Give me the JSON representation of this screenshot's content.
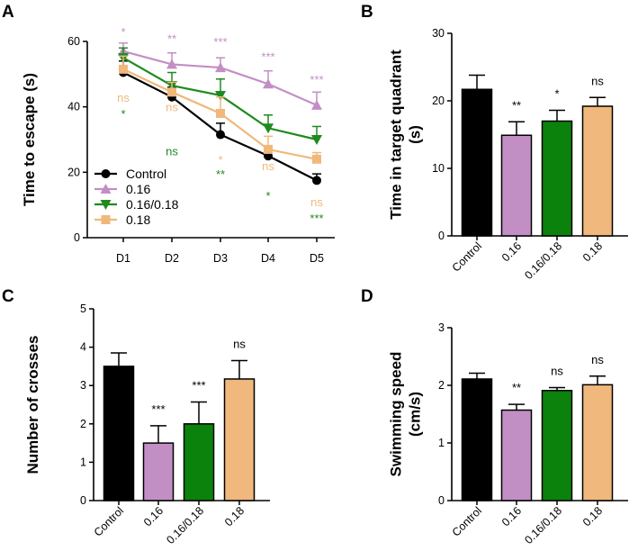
{
  "panels": [
    "A",
    "B",
    "C",
    "D"
  ],
  "chart_data": [
    {
      "id": "A",
      "type": "line",
      "xlabel": "",
      "ylabel": "Time to escape (s)",
      "categories": [
        "D1",
        "D2",
        "D3",
        "D4",
        "D5"
      ],
      "ylim": [
        0,
        60
      ],
      "yticks": [
        "0",
        "20",
        "40",
        "60"
      ],
      "series": [
        {
          "name": "Control",
          "color": "#000000",
          "marker": "circle",
          "values": [
            50.5,
            43,
            31.5,
            25,
            17.5
          ],
          "errors": [
            3.5,
            3,
            3.5,
            3,
            2
          ]
        },
        {
          "name": "0.16",
          "color": "#c28fc4",
          "marker": "triangle-up",
          "values": [
            57,
            53,
            52,
            47,
            40.5
          ],
          "errors": [
            2.5,
            3.5,
            3,
            4,
            4
          ]
        },
        {
          "name": "0.16/0.18",
          "color": "#1f8a1f",
          "marker": "triangle-down",
          "values": [
            55,
            46.5,
            43.5,
            33.5,
            30
          ],
          "errors": [
            3,
            4,
            5,
            4,
            4
          ]
        },
        {
          "name": "0.18",
          "color": "#f0b87c",
          "marker": "square",
          "values": [
            51.5,
            44.5,
            38,
            27,
            24
          ],
          "errors": [
            4,
            3,
            5,
            4,
            2
          ]
        }
      ],
      "annotations": [
        {
          "text": "*",
          "color": "#c28fc4",
          "category": "D1",
          "y": 63
        },
        {
          "text": "ns",
          "color": "#f0b87c",
          "category": "D1",
          "y": 43
        },
        {
          "text": "*",
          "color": "#1f8a1f",
          "category": "D1",
          "y": 38
        },
        {
          "text": "**",
          "color": "#c28fc4",
          "category": "D2",
          "y": 61
        },
        {
          "text": "ns",
          "color": "#f0b87c",
          "category": "D2",
          "y": 40
        },
        {
          "text": "ns",
          "color": "#1f8a1f",
          "category": "D2",
          "y": 26.5
        },
        {
          "text": "***",
          "color": "#c28fc4",
          "category": "D3",
          "y": 60
        },
        {
          "text": "*",
          "color": "#f0b87c",
          "category": "D3",
          "y": 24
        },
        {
          "text": "**",
          "color": "#1f8a1f",
          "category": "D3",
          "y": 19.5
        },
        {
          "text": "***",
          "color": "#c28fc4",
          "category": "D4",
          "y": 55.5
        },
        {
          "text": "ns",
          "color": "#f0b87c",
          "category": "D4",
          "y": 22
        },
        {
          "text": "*",
          "color": "#1f8a1f",
          "category": "D4",
          "y": 13
        },
        {
          "text": "***",
          "color": "#c28fc4",
          "category": "D5",
          "y": 48.5
        },
        {
          "text": "ns",
          "color": "#f0b87c",
          "category": "D5",
          "y": 11
        },
        {
          "text": "***",
          "color": "#1f8a1f",
          "category": "D5",
          "y": 6
        }
      ]
    },
    {
      "id": "B",
      "type": "bar",
      "ylabel_lines": [
        "Time in target quadrant",
        "(s)"
      ],
      "categories": [
        "Control",
        "0.16",
        "0.16/0.18",
        "0.18"
      ],
      "colors": [
        "#000000",
        "#c28fc4",
        "#0b820b",
        "#f0b87c"
      ],
      "values": [
        21.7,
        14.9,
        17,
        19.2
      ],
      "errors": [
        2.1,
        2,
        1.6,
        1.3
      ],
      "sig": [
        "",
        "**",
        "*",
        "ns"
      ],
      "ylim": [
        0,
        30
      ],
      "yticks": [
        "0",
        "10",
        "20",
        "30"
      ]
    },
    {
      "id": "C",
      "type": "bar",
      "ylabel_lines": [
        "Number of crosses"
      ],
      "categories": [
        "Control",
        "0.16",
        "0.16/0.18",
        "0.18"
      ],
      "colors": [
        "#000000",
        "#c28fc4",
        "#0b820b",
        "#f0b87c"
      ],
      "values": [
        3.5,
        1.5,
        2,
        3.17
      ],
      "errors": [
        0.35,
        0.45,
        0.57,
        0.48
      ],
      "sig": [
        "",
        "***",
        "***",
        "ns"
      ],
      "ylim": [
        0,
        5
      ],
      "yticks": [
        "0",
        "1",
        "2",
        "3",
        "4",
        "5"
      ]
    },
    {
      "id": "D",
      "type": "bar",
      "ylabel_lines": [
        "Swimming speed",
        "(cm/s)"
      ],
      "categories": [
        "Control",
        "0.16",
        "0.16/0.18",
        "0.18"
      ],
      "colors": [
        "#000000",
        "#c28fc4",
        "#0b820b",
        "#f0b87c"
      ],
      "values": [
        2.11,
        1.57,
        1.91,
        2.01
      ],
      "errors": [
        0.1,
        0.1,
        0.05,
        0.15
      ],
      "sig": [
        "",
        "**",
        "ns",
        "ns"
      ],
      "ylim": [
        0,
        3
      ],
      "yticks": [
        "0",
        "1",
        "2",
        "3"
      ]
    }
  ]
}
